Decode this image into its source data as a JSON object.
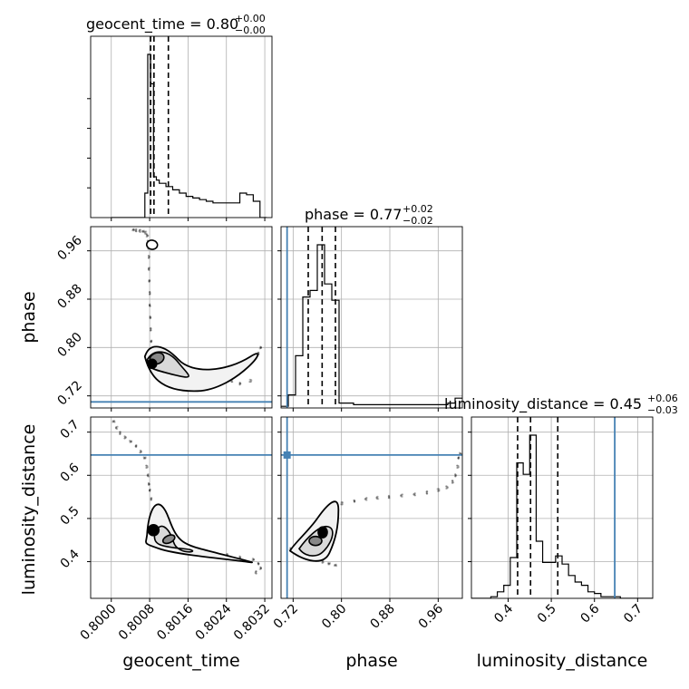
{
  "chart_data": {
    "type": "corner",
    "parameters": [
      "geocent_time",
      "phase",
      "luminosity_distance"
    ],
    "axis_labels": {
      "geocent_time": "geocent_time",
      "phase": "phase",
      "luminosity_distance": "luminosity_distance"
    },
    "titles": {
      "geocent_time": {
        "text": "geocent_time = 0.80",
        "sup": "+0.00",
        "sub": "−0.00"
      },
      "phase": {
        "text": "phase = 0.77",
        "sup": "+0.02",
        "sub": "−0.02"
      },
      "luminosity_distance": {
        "text": "luminosity_distance = 0.45",
        "sup": "+0.06",
        "sub": "−0.03"
      }
    },
    "ranges": {
      "geocent_time": [
        0.79957,
        0.80335
      ],
      "phase": [
        0.7,
        1.0
      ],
      "luminosity_distance": [
        0.315,
        0.735
      ]
    },
    "ticks": {
      "geocent_time": {
        "values": [
          0.8,
          0.8008,
          0.8016,
          0.8024,
          0.8032
        ],
        "labels": [
          "0.8000",
          "0.8008",
          "0.8016",
          "0.8024",
          "0.8032"
        ]
      },
      "phase": {
        "values": [
          0.72,
          0.8,
          0.88,
          0.96
        ],
        "labels": [
          "0.72",
          "0.80",
          "0.88",
          "0.96"
        ]
      },
      "luminosity_distance": {
        "values": [
          0.4,
          0.5,
          0.6,
          0.7
        ],
        "labels": [
          "0.4",
          "0.5",
          "0.6",
          "0.7"
        ]
      }
    },
    "injection": {
      "phase": 0.71,
      "luminosity_distance": 0.647
    },
    "injection_color": "#4682b4",
    "quantile_lines": {
      "geocent_time": [
        0.80082,
        0.80089,
        0.80119
      ],
      "phase": [
        0.745,
        0.768,
        0.79
      ],
      "luminosity_distance": [
        0.422,
        0.452,
        0.515
      ]
    },
    "histograms": {
      "geocent_time": {
        "edges": [
          0.8,
          0.80014,
          0.80028,
          0.80042,
          0.80056,
          0.8007,
          0.80076,
          0.80082,
          0.80088,
          0.80094,
          0.801,
          0.80114,
          0.80128,
          0.80142,
          0.80156,
          0.8017,
          0.80184,
          0.80198,
          0.80212,
          0.80226,
          0.8024,
          0.80254,
          0.80268,
          0.80282,
          0.80296,
          0.8031,
          0.80324
        ],
        "counts": [
          0,
          0,
          0,
          0,
          0,
          0.15,
          1.0,
          0.82,
          0.25,
          0.23,
          0.21,
          0.19,
          0.17,
          0.15,
          0.13,
          0.12,
          0.11,
          0.1,
          0.09,
          0.09,
          0.09,
          0.09,
          0.15,
          0.14,
          0.1,
          0
        ]
      },
      "phase": {
        "edges": [
          0.7,
          0.712,
          0.724,
          0.736,
          0.748,
          0.76,
          0.772,
          0.784,
          0.796,
          0.808,
          0.82,
          0.832,
          0.844,
          0.856,
          0.868,
          0.88,
          0.892,
          0.904,
          0.916,
          0.928,
          0.94,
          0.952,
          0.964,
          0.976,
          0.988,
          1.0
        ],
        "counts": [
          0.01,
          0.08,
          0.32,
          0.68,
          0.72,
          1.0,
          0.76,
          0.66,
          0.03,
          0.03,
          0.02,
          0.02,
          0.02,
          0.02,
          0.02,
          0.02,
          0.02,
          0.02,
          0.02,
          0.02,
          0.02,
          0.02,
          0.02,
          0.03,
          0.06
        ]
      },
      "luminosity_distance": {
        "edges": [
          0.315,
          0.33,
          0.345,
          0.36,
          0.375,
          0.39,
          0.405,
          0.42,
          0.435,
          0.45,
          0.465,
          0.48,
          0.495,
          0.51,
          0.525,
          0.54,
          0.555,
          0.57,
          0.585,
          0.6,
          0.615,
          0.63,
          0.645,
          0.66,
          0.675,
          0.69,
          0.705,
          0.72,
          0.735
        ],
        "counts": [
          0,
          0,
          0,
          0.01,
          0.04,
          0.08,
          0.25,
          0.83,
          0.76,
          1.0,
          0.35,
          0.22,
          0.22,
          0.26,
          0.21,
          0.14,
          0.1,
          0.08,
          0.04,
          0.03,
          0.01,
          0.01,
          0.01,
          0,
          0,
          0,
          0,
          0
        ]
      }
    },
    "samples": {
      "phase_vs_geocent_time": [
        [
          0.80045,
          0.995
        ],
        [
          0.8005,
          0.994
        ],
        [
          0.80058,
          0.993
        ],
        [
          0.80066,
          0.992
        ],
        [
          0.80072,
          0.99
        ],
        [
          0.80076,
          0.985
        ],
        [
          0.80078,
          0.975
        ],
        [
          0.80079,
          0.965
        ],
        [
          0.8008,
          0.95
        ],
        [
          0.8008,
          0.93
        ],
        [
          0.80081,
          0.91
        ],
        [
          0.80082,
          0.89
        ],
        [
          0.80082,
          0.87
        ],
        [
          0.80083,
          0.85
        ],
        [
          0.80084,
          0.83
        ],
        [
          0.80085,
          0.81
        ],
        [
          0.80088,
          0.795
        ],
        [
          0.80095,
          0.785
        ],
        [
          0.80105,
          0.78
        ],
        [
          0.8012,
          0.775
        ],
        [
          0.8014,
          0.768
        ],
        [
          0.8016,
          0.76
        ],
        [
          0.8018,
          0.752
        ],
        [
          0.802,
          0.748
        ],
        [
          0.8022,
          0.752
        ],
        [
          0.8024,
          0.76
        ],
        [
          0.8026,
          0.768
        ],
        [
          0.8028,
          0.775
        ],
        [
          0.80295,
          0.78
        ],
        [
          0.80305,
          0.79
        ],
        [
          0.8031,
          0.8
        ],
        [
          0.8029,
          0.745
        ],
        [
          0.8027,
          0.74
        ],
        [
          0.8025,
          0.745
        ]
      ],
      "lumdist_vs_geocent_time": [
        [
          0.80005,
          0.725
        ],
        [
          0.80012,
          0.71
        ],
        [
          0.8002,
          0.698
        ],
        [
          0.8003,
          0.688
        ],
        [
          0.8004,
          0.678
        ],
        [
          0.8005,
          0.668
        ],
        [
          0.8006,
          0.655
        ],
        [
          0.8007,
          0.64
        ],
        [
          0.80075,
          0.62
        ],
        [
          0.80078,
          0.6
        ],
        [
          0.8008,
          0.58
        ],
        [
          0.80082,
          0.565
        ],
        [
          0.80085,
          0.545
        ],
        [
          0.80088,
          0.52
        ],
        [
          0.8009,
          0.5
        ],
        [
          0.80098,
          0.48
        ],
        [
          0.8011,
          0.46
        ],
        [
          0.8013,
          0.44
        ],
        [
          0.8015,
          0.43
        ],
        [
          0.8018,
          0.425
        ],
        [
          0.8021,
          0.42
        ],
        [
          0.8024,
          0.415
        ],
        [
          0.8027,
          0.41
        ],
        [
          0.80295,
          0.405
        ],
        [
          0.80305,
          0.395
        ],
        [
          0.8031,
          0.385
        ],
        [
          0.803,
          0.375
        ]
      ],
      "lumdist_vs_phase": [
        [
          0.715,
          0.43
        ],
        [
          0.72,
          0.425
        ],
        [
          0.73,
          0.42
        ],
        [
          0.74,
          0.415
        ],
        [
          0.75,
          0.41
        ],
        [
          0.76,
          0.405
        ],
        [
          0.77,
          0.4
        ],
        [
          0.78,
          0.395
        ],
        [
          0.79,
          0.392
        ],
        [
          0.75,
          0.44
        ],
        [
          0.76,
          0.46
        ],
        [
          0.77,
          0.48
        ],
        [
          0.78,
          0.5
        ],
        [
          0.79,
          0.52
        ],
        [
          0.8,
          0.535
        ],
        [
          0.82,
          0.54
        ],
        [
          0.84,
          0.545
        ],
        [
          0.86,
          0.548
        ],
        [
          0.88,
          0.55
        ],
        [
          0.9,
          0.553
        ],
        [
          0.92,
          0.556
        ],
        [
          0.94,
          0.56
        ],
        [
          0.96,
          0.566
        ],
        [
          0.975,
          0.572
        ],
        [
          0.985,
          0.585
        ],
        [
          0.99,
          0.6
        ],
        [
          0.993,
          0.62
        ],
        [
          0.995,
          0.64
        ],
        [
          0.997,
          0.65
        ]
      ]
    }
  }
}
